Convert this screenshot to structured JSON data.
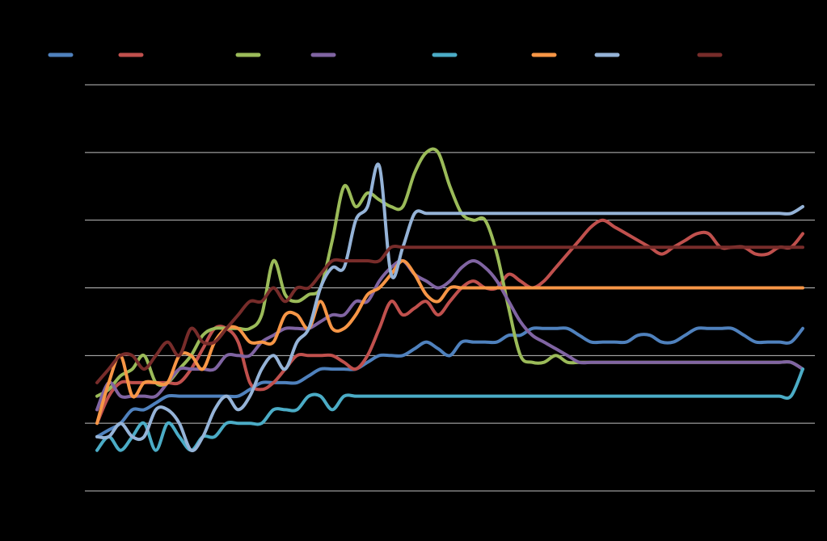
{
  "chart_data": {
    "type": "line",
    "title": "",
    "xlabel": "",
    "ylabel": "",
    "legend_position": "top",
    "grid": true,
    "x": [
      1,
      2,
      3,
      4,
      5,
      6,
      7,
      8,
      9,
      10,
      11,
      12,
      13,
      14,
      15,
      16,
      17,
      18,
      19,
      20,
      21,
      22,
      23,
      24,
      25,
      26,
      27,
      28,
      29,
      30,
      31,
      32,
      33,
      34,
      35,
      36,
      37,
      38,
      39,
      40,
      41,
      42,
      43,
      44,
      45,
      46,
      47,
      48,
      49,
      50,
      51,
      52,
      53,
      54,
      55,
      56,
      57,
      58,
      59,
      60,
      61
    ],
    "ylim": [
      0,
      6
    ],
    "yticks": [
      0,
      1,
      2,
      3,
      4,
      5,
      6
    ],
    "series": [
      {
        "name": "",
        "color": "#4F81BD",
        "values": [
          0.8,
          0.9,
          1.0,
          1.2,
          1.2,
          1.3,
          1.4,
          1.4,
          1.4,
          1.4,
          1.4,
          1.4,
          1.4,
          1.5,
          1.6,
          1.6,
          1.6,
          1.6,
          1.7,
          1.8,
          1.8,
          1.8,
          1.8,
          1.9,
          2.0,
          2.0,
          2.0,
          2.1,
          2.2,
          2.1,
          2.0,
          2.2,
          2.2,
          2.2,
          2.2,
          2.3,
          2.3,
          2.4,
          2.4,
          2.4,
          2.4,
          2.3,
          2.2,
          2.2,
          2.2,
          2.2,
          2.3,
          2.3,
          2.2,
          2.2,
          2.3,
          2.4,
          2.4,
          2.4,
          2.4,
          2.3,
          2.2,
          2.2,
          2.2,
          2.2,
          2.4
        ]
      },
      {
        "name": "",
        "color": "#C0504D",
        "values": [
          1.0,
          1.4,
          1.6,
          1.6,
          1.6,
          1.6,
          1.6,
          1.6,
          1.8,
          2.1,
          2.4,
          2.4,
          2.2,
          1.6,
          1.5,
          1.6,
          1.8,
          2.0,
          2.0,
          2.0,
          2.0,
          1.9,
          1.8,
          2.0,
          2.4,
          2.8,
          2.6,
          2.7,
          2.8,
          2.6,
          2.8,
          3.0,
          3.1,
          3.0,
          3.0,
          3.2,
          3.1,
          3.0,
          3.1,
          3.3,
          3.5,
          3.7,
          3.9,
          4.0,
          3.9,
          3.8,
          3.7,
          3.6,
          3.5,
          3.6,
          3.7,
          3.8,
          3.8,
          3.6,
          3.6,
          3.6,
          3.5,
          3.5,
          3.6,
          3.6,
          3.8
        ]
      },
      {
        "name": "",
        "color": "#9BBB59",
        "values": [
          1.4,
          1.5,
          1.7,
          1.8,
          2.0,
          1.6,
          1.6,
          1.8,
          2.0,
          2.3,
          2.4,
          2.4,
          2.4,
          2.4,
          2.6,
          3.4,
          2.9,
          2.8,
          2.9,
          3.0,
          3.7,
          4.5,
          4.2,
          4.4,
          4.3,
          4.2,
          4.2,
          4.7,
          5.0,
          5.0,
          4.5,
          4.1,
          4.0,
          4.0,
          3.5,
          2.7,
          2.0,
          1.9,
          1.9,
          2.0,
          1.9,
          1.9,
          1.9,
          1.9,
          1.9,
          1.9,
          1.9,
          1.9,
          1.9,
          1.9,
          1.9,
          1.9,
          1.9,
          1.9,
          1.9,
          1.9,
          1.9,
          1.9,
          1.9,
          1.9,
          1.8
        ]
      },
      {
        "name": "",
        "color": "#8064A2",
        "values": [
          1.2,
          1.6,
          1.4,
          1.4,
          1.4,
          1.4,
          1.6,
          1.8,
          1.8,
          1.8,
          1.8,
          2.0,
          2.0,
          2.0,
          2.2,
          2.3,
          2.4,
          2.4,
          2.4,
          2.5,
          2.6,
          2.6,
          2.8,
          2.8,
          3.1,
          3.3,
          3.4,
          3.2,
          3.1,
          3.0,
          3.1,
          3.3,
          3.4,
          3.3,
          3.1,
          2.8,
          2.5,
          2.3,
          2.2,
          2.1,
          2.0,
          1.9,
          1.9,
          1.9,
          1.9,
          1.9,
          1.9,
          1.9,
          1.9,
          1.9,
          1.9,
          1.9,
          1.9,
          1.9,
          1.9,
          1.9,
          1.9,
          1.9,
          1.9,
          1.9,
          1.8
        ]
      },
      {
        "name": "",
        "color": "#4BACC6",
        "values": [
          0.6,
          0.8,
          0.6,
          0.8,
          1.0,
          0.6,
          1.0,
          0.8,
          0.6,
          0.8,
          0.8,
          1.0,
          1.0,
          1.0,
          1.0,
          1.2,
          1.2,
          1.2,
          1.4,
          1.4,
          1.2,
          1.4,
          1.4,
          1.4,
          1.4,
          1.4,
          1.4,
          1.4,
          1.4,
          1.4,
          1.4,
          1.4,
          1.4,
          1.4,
          1.4,
          1.4,
          1.4,
          1.4,
          1.4,
          1.4,
          1.4,
          1.4,
          1.4,
          1.4,
          1.4,
          1.4,
          1.4,
          1.4,
          1.4,
          1.4,
          1.4,
          1.4,
          1.4,
          1.4,
          1.4,
          1.4,
          1.4,
          1.4,
          1.4,
          1.4,
          1.8
        ]
      },
      {
        "name": "",
        "color": "#F79646",
        "values": [
          1.0,
          1.6,
          2.0,
          1.4,
          1.6,
          1.6,
          1.6,
          2.0,
          2.0,
          1.8,
          2.2,
          2.4,
          2.4,
          2.2,
          2.2,
          2.2,
          2.6,
          2.6,
          2.4,
          2.8,
          2.4,
          2.4,
          2.6,
          2.9,
          3.0,
          3.2,
          3.4,
          3.2,
          2.9,
          2.8,
          3.0,
          3.0,
          3.0,
          3.0,
          3.0,
          3.0,
          3.0,
          3.0,
          3.0,
          3.0,
          3.0,
          3.0,
          3.0,
          3.0,
          3.0,
          3.0,
          3.0,
          3.0,
          3.0,
          3.0,
          3.0,
          3.0,
          3.0,
          3.0,
          3.0,
          3.0,
          3.0,
          3.0,
          3.0,
          3.0,
          3.0
        ]
      },
      {
        "name": "",
        "color": "#95B3D7",
        "values": [
          0.8,
          0.8,
          1.0,
          0.8,
          0.8,
          1.2,
          1.2,
          1.0,
          0.6,
          0.8,
          1.2,
          1.4,
          1.2,
          1.4,
          1.8,
          2.0,
          1.8,
          2.2,
          2.4,
          3.0,
          3.3,
          3.3,
          4.0,
          4.2,
          4.8,
          3.2,
          3.6,
          4.1,
          4.1,
          4.1,
          4.1,
          4.1,
          4.1,
          4.1,
          4.1,
          4.1,
          4.1,
          4.1,
          4.1,
          4.1,
          4.1,
          4.1,
          4.1,
          4.1,
          4.1,
          4.1,
          4.1,
          4.1,
          4.1,
          4.1,
          4.1,
          4.1,
          4.1,
          4.1,
          4.1,
          4.1,
          4.1,
          4.1,
          4.1,
          4.1,
          4.2
        ]
      },
      {
        "name": "",
        "color": "#772C2A",
        "values": [
          1.6,
          1.8,
          2.0,
          2.0,
          1.8,
          2.0,
          2.2,
          2.0,
          2.4,
          2.2,
          2.2,
          2.4,
          2.6,
          2.8,
          2.8,
          3.0,
          2.8,
          3.0,
          3.0,
          3.2,
          3.4,
          3.4,
          3.4,
          3.4,
          3.4,
          3.6,
          3.6,
          3.6,
          3.6,
          3.6,
          3.6,
          3.6,
          3.6,
          3.6,
          3.6,
          3.6,
          3.6,
          3.6,
          3.6,
          3.6,
          3.6,
          3.6,
          3.6,
          3.6,
          3.6,
          3.6,
          3.6,
          3.6,
          3.6,
          3.6,
          3.6,
          3.6,
          3.6,
          3.6,
          3.6,
          3.6,
          3.6,
          3.6,
          3.6,
          3.6,
          3.6
        ]
      }
    ]
  }
}
